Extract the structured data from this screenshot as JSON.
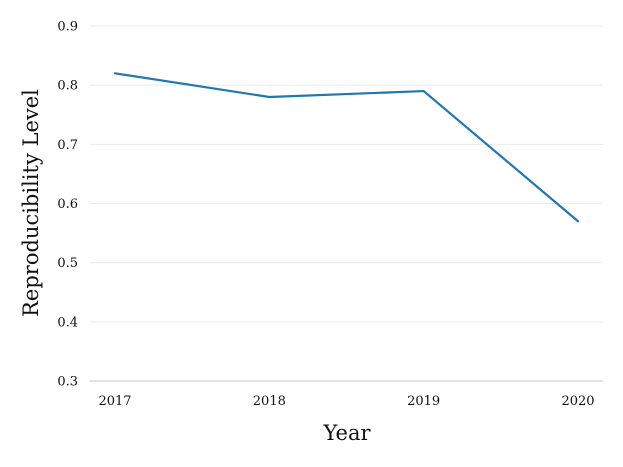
{
  "chart_data": {
    "type": "line",
    "title": "",
    "xlabel": "Year",
    "ylabel": "Reproducibility Level",
    "categories": [
      "2017",
      "2018",
      "2019",
      "2020"
    ],
    "series": [
      {
        "values": [
          0.82,
          0.78,
          0.79,
          0.57
        ]
      }
    ],
    "ylim": [
      0.3,
      0.9
    ],
    "yticks": [
      "0.3",
      "0.4",
      "0.5",
      "0.6",
      "0.7",
      "0.8",
      "0.9"
    ],
    "grid": true,
    "legend": "none",
    "colors": {
      "series": "#1f77b4",
      "grid": "#ebebeb",
      "axis": "#d9d9d9"
    }
  }
}
